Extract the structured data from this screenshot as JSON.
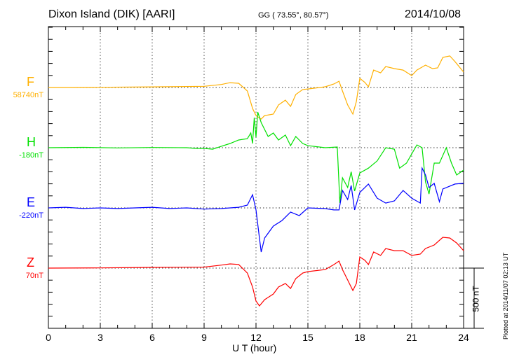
{
  "chart_data": {
    "type": "line",
    "title": "Dixon Island (DIK)  [AARI]",
    "coords": "GG ( 73.55°,  80.57°)",
    "date": "2014/10/08",
    "xlabel": "U T (hour)",
    "xlim": [
      0,
      24
    ],
    "xticks": [
      "0",
      "3",
      "6",
      "9",
      "12",
      "15",
      "18",
      "21",
      "24"
    ],
    "scale_label": "500 nT",
    "plotted_note": "Plotted at 2014/11/07 02:13 UT",
    "grid": true,
    "series": [
      {
        "name": "F",
        "baseline_label": "58740nT",
        "color": "#ffb000",
        "x": [
          0,
          3,
          6,
          9,
          10,
          10.5,
          11,
          11.5,
          11.8,
          12,
          12.3,
          12.5,
          13,
          13.3,
          13.7,
          14,
          14.3,
          14.7,
          15,
          16,
          16.5,
          16.8,
          17,
          17.3,
          17.6,
          17.8,
          18,
          18.3,
          18.5,
          18.8,
          19.2,
          19.5,
          20,
          20.5,
          21,
          21.3,
          21.8,
          22.2,
          22.5,
          22.8,
          23.2,
          23.5,
          24
        ],
        "y": [
          0,
          2,
          5,
          10,
          25,
          40,
          35,
          -29,
          -174,
          -233,
          -262,
          -233,
          -221,
          -145,
          -105,
          -157,
          -58,
          -17,
          -12,
          6,
          29,
          52,
          -29,
          -145,
          -221,
          -116,
          76,
          41,
          6,
          145,
          122,
          174,
          157,
          145,
          99,
          145,
          186,
          157,
          163,
          250,
          262,
          215,
          128
        ]
      },
      {
        "name": "H",
        "baseline_label": "-180nT",
        "color": "#00e000",
        "x": [
          0,
          2,
          4,
          6,
          8,
          8.5,
          9,
          9.5,
          10,
          10.5,
          11,
          11.5,
          11.7,
          11.8,
          11.9,
          12,
          12.1,
          12.3,
          12.5,
          12.7,
          13,
          13.3,
          13.7,
          14,
          14.3,
          14.7,
          15,
          16,
          16.7,
          16.85,
          17,
          17.3,
          17.5,
          17.7,
          18,
          18.5,
          19,
          19.5,
          20,
          20.3,
          20.7,
          21,
          21.3,
          21.6,
          21.8,
          22,
          22.3,
          22.6,
          23,
          23.3,
          23.6,
          24
        ],
        "y": [
          0,
          3,
          -2,
          2,
          0,
          -6,
          -6,
          -12,
          12,
          35,
          64,
          75,
          122,
          35,
          250,
          87,
          296,
          209,
          151,
          93,
          122,
          64,
          105,
          17,
          93,
          35,
          17,
          0,
          6,
          -460,
          -250,
          -330,
          -200,
          -360,
          -210,
          -170,
          -110,
          0,
          -12,
          -170,
          -128,
          -52,
          23,
          0,
          -285,
          -385,
          -128,
          -128,
          0,
          -128,
          -227,
          -186
        ]
      },
      {
        "name": "E",
        "baseline_label": "-220nT",
        "color": "#0000ff",
        "x": [
          0,
          1,
          2,
          3,
          4,
          5,
          6,
          7,
          8,
          9,
          10,
          11,
          11.5,
          11.8,
          12,
          12.2,
          12.3,
          12.5,
          13,
          13.5,
          14,
          14.5,
          15,
          16,
          16.5,
          16.8,
          17,
          17.3,
          17.5,
          17.7,
          18,
          18.5,
          19,
          19.5,
          20,
          20.5,
          21,
          21.5,
          21.6,
          21.8,
          22,
          22.3,
          22.6,
          22.8,
          23.5,
          24
        ],
        "y": [
          0,
          5,
          -5,
          0,
          -5,
          0,
          5,
          -5,
          0,
          -10,
          -5,
          5,
          23,
          110,
          -17,
          -250,
          -366,
          -250,
          -151,
          -105,
          -35,
          -64,
          0,
          -6,
          -17,
          -17,
          145,
          70,
          186,
          -17,
          128,
          198,
          81,
          40,
          58,
          145,
          81,
          40,
          331,
          273,
          169,
          204,
          52,
          157,
          198,
          204
        ]
      },
      {
        "name": "Z",
        "baseline_label": "70nT",
        "color": "#ff0000",
        "x": [
          0,
          3,
          6,
          9,
          10,
          10.5,
          11,
          11.5,
          11.8,
          12,
          12.2,
          12.5,
          13,
          13.3,
          13.7,
          14,
          14.3,
          14.7,
          15,
          16,
          16.5,
          16.8,
          17,
          17.3,
          17.6,
          17.8,
          18,
          18.3,
          18.5,
          18.8,
          19.2,
          19.5,
          20,
          20.5,
          21,
          21.5,
          21.8,
          22.3,
          22.8,
          23.2,
          23.6,
          24
        ],
        "y": [
          0,
          2,
          6,
          8,
          25,
          35,
          30,
          -41,
          -157,
          -273,
          -314,
          -262,
          -215,
          -157,
          -128,
          -169,
          -87,
          -41,
          -29,
          -12,
          29,
          58,
          -12,
          -99,
          -186,
          -128,
          93,
          64,
          29,
          134,
          105,
          163,
          145,
          145,
          105,
          116,
          163,
          192,
          256,
          250,
          209,
          145
        ]
      }
    ]
  }
}
